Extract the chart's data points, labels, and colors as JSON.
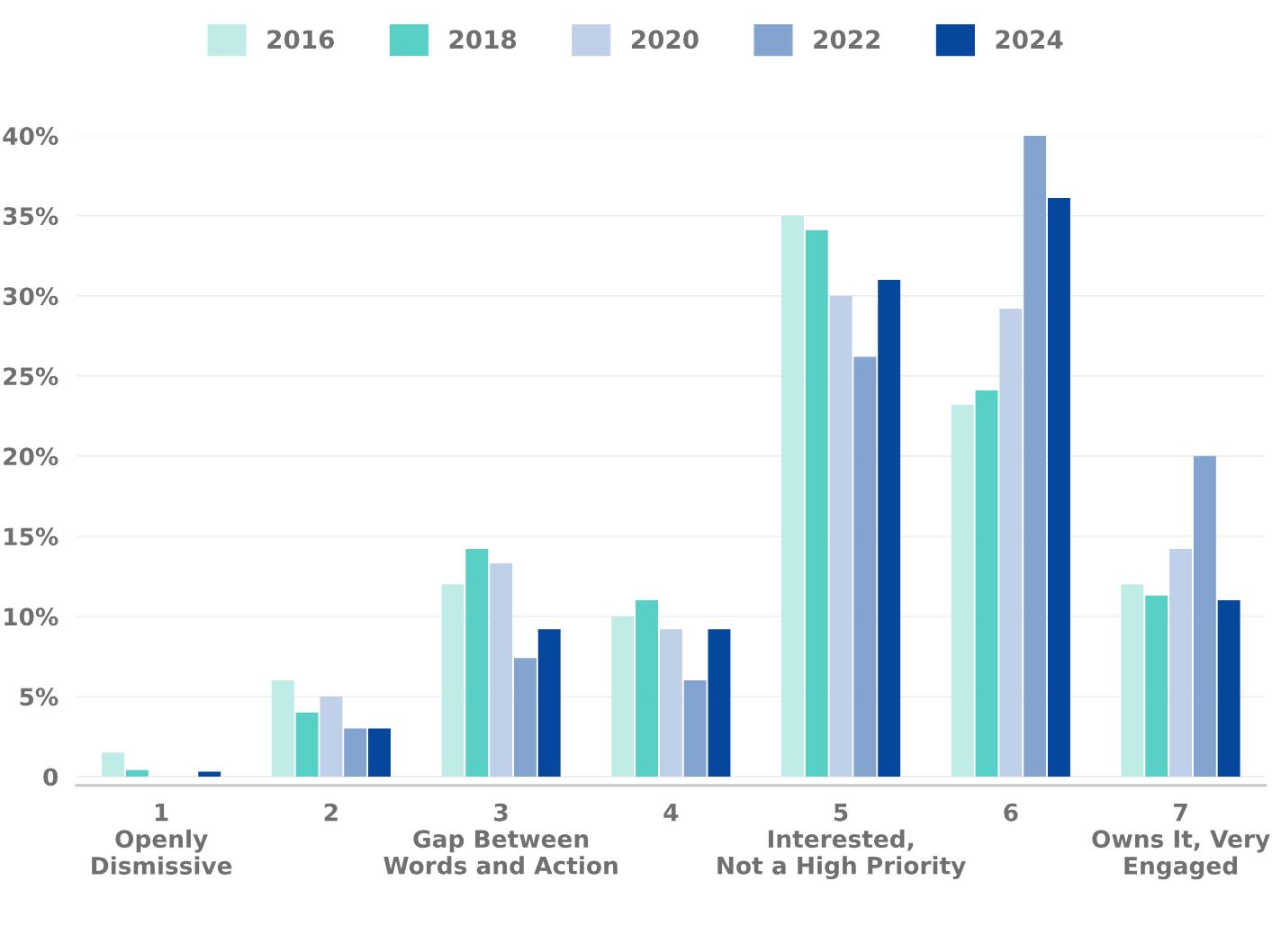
{
  "chart_data": {
    "type": "bar",
    "categories": [
      "1\nOpenly\nDismissive",
      "2",
      "3\nGap Between\nWords and Action",
      "4",
      "5\nInterested,\nNot a High Priority",
      "6",
      "7\nOwns It, Very\nEngaged"
    ],
    "series": [
      {
        "name": "2016",
        "color": "#c0ece8",
        "values": [
          1.5,
          6.0,
          12.0,
          10.0,
          35.0,
          23.2,
          12.0
        ]
      },
      {
        "name": "2018",
        "color": "#58d0c6",
        "values": [
          0.4,
          4.0,
          14.2,
          11.0,
          34.1,
          24.1,
          11.3
        ]
      },
      {
        "name": "2020",
        "color": "#c0d0e8",
        "values": [
          null,
          5.0,
          13.3,
          9.2,
          30.0,
          29.2,
          14.2
        ]
      },
      {
        "name": "2022",
        "color": "#84a4d0",
        "values": [
          null,
          3.0,
          7.4,
          6.0,
          26.2,
          40.0,
          20.0
        ]
      },
      {
        "name": "2024",
        "color": "#04479c",
        "values": [
          0.3,
          3.0,
          9.2,
          9.2,
          31.0,
          36.1,
          11.0
        ]
      }
    ],
    "ylim": [
      -0.55,
      40
    ],
    "yticks": [
      {
        "value": 0,
        "label": "0"
      },
      {
        "value": 5,
        "label": "5%"
      },
      {
        "value": 10,
        "label": "10%"
      },
      {
        "value": 15,
        "label": "15%"
      },
      {
        "value": 20,
        "label": "20%"
      },
      {
        "value": 25,
        "label": "25%"
      },
      {
        "value": 30,
        "label": "30%"
      },
      {
        "value": 35,
        "label": "35%"
      },
      {
        "value": 40,
        "label": "40%"
      }
    ],
    "grid": "y",
    "legend": "top"
  }
}
